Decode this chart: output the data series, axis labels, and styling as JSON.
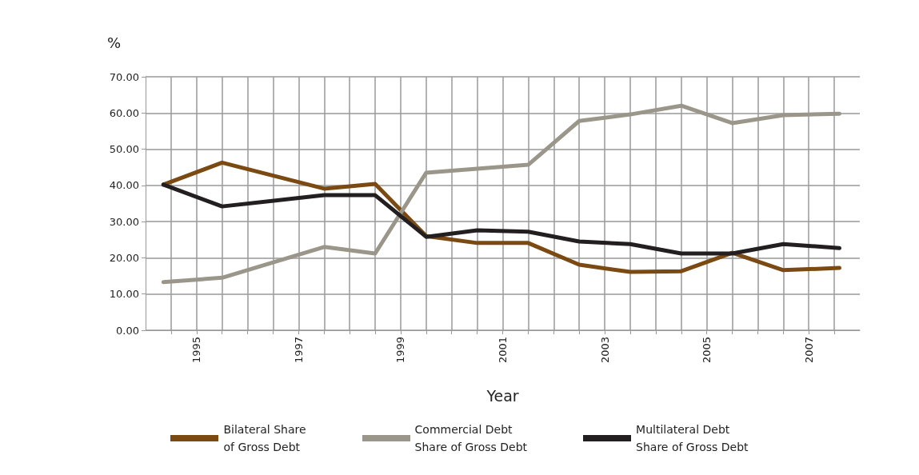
{
  "chart_data": {
    "type": "line",
    "xlabel": "Year",
    "ylabel": "%",
    "x": [
      1994.35,
      1995.5,
      1997.5,
      1998.5,
      1999.5,
      2000.5,
      2001.5,
      2002.5,
      2003.5,
      2004.5,
      2005.5,
      2006.5,
      2007.6
    ],
    "series": [
      {
        "name": "Bilateral Share\nof Gross Debt",
        "color": "#7a4a12",
        "values": [
          40.2,
          46.3,
          39.1,
          40.4,
          26.0,
          24.1,
          24.1,
          18.1,
          16.1,
          16.3,
          21.4,
          16.6,
          17.2
        ]
      },
      {
        "name": "Commercial Debt\nShare of Gross Debt",
        "color": "#9a968a",
        "values": [
          13.3,
          14.5,
          23.0,
          21.2,
          43.5,
          44.6,
          45.7,
          57.8,
          59.6,
          62.0,
          57.2,
          59.4,
          59.8
        ]
      },
      {
        "name": "Multilateral Debt\nShare of Gross Debt",
        "color": "#231f20",
        "values": [
          40.2,
          34.2,
          37.3,
          37.3,
          25.8,
          27.6,
          27.2,
          24.5,
          23.8,
          21.2,
          21.2,
          23.8,
          22.7
        ]
      }
    ],
    "xlim": [
      1994,
      2008
    ],
    "xticks": [
      {
        "value": 1994.5,
        "label": null
      },
      1995,
      {
        "value": 1995.5,
        "label": null
      },
      {
        "value": 1996,
        "label": null
      },
      {
        "value": 1996.5,
        "label": null
      },
      1997,
      {
        "value": 1997.5,
        "label": null
      },
      {
        "value": 1998,
        "label": null
      },
      {
        "value": 1998.5,
        "label": null
      },
      1999,
      {
        "value": 1999.5,
        "label": null
      },
      {
        "value": 2000,
        "label": null
      },
      {
        "value": 2000.5,
        "label": null
      },
      2001,
      {
        "value": 2001.5,
        "label": null
      },
      {
        "value": 2002,
        "label": null
      },
      {
        "value": 2002.5,
        "label": null
      },
      2003,
      {
        "value": 2003.5,
        "label": null
      },
      {
        "value": 2004,
        "label": null
      },
      {
        "value": 2004.5,
        "label": null
      },
      2005,
      {
        "value": 2005.5,
        "label": null
      },
      {
        "value": 2006,
        "label": null
      },
      {
        "value": 2006.5,
        "label": null
      },
      2007,
      {
        "value": 2007.5,
        "label": null
      }
    ],
    "ylim": [
      0,
      70
    ],
    "yticks": [
      {
        "value": 0,
        "label": "0.00"
      },
      {
        "value": 10,
        "label": "10.00"
      },
      {
        "value": 20,
        "label": "20.00"
      },
      {
        "value": 30,
        "label": "30.00"
      },
      {
        "value": 40,
        "label": "40.00"
      },
      {
        "value": 50,
        "label": "50.00"
      },
      {
        "value": 60,
        "label": "60.00"
      },
      {
        "value": 70,
        "label": "70.00"
      }
    ],
    "grid": true,
    "legend": "bottom",
    "marker": "none",
    "line_style": "solid"
  }
}
